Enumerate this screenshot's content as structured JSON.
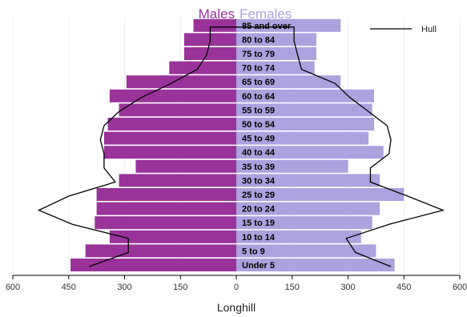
{
  "chart_data": {
    "type": "bar",
    "subtype": "population-pyramid",
    "title_left": "Males",
    "title_right": "Females",
    "xlabel": "Longhill",
    "xlim": [
      -600,
      600
    ],
    "x_ticks": [
      -600,
      -450,
      -300,
      -150,
      0,
      150,
      300,
      450,
      600
    ],
    "x_tick_labels": [
      "600",
      "450",
      "300",
      "150",
      "0",
      "150",
      "300",
      "450",
      "600"
    ],
    "grid": true,
    "legend_position": "top-right",
    "categories": [
      "Under 5",
      "5 to 9",
      "10 to 14",
      "15 to 19",
      "20 to 24",
      "25 to 29",
      "30 to 34",
      "35 to 39",
      "40 to 44",
      "45 to 49",
      "50 to 54",
      "55 to 59",
      "60 to 64",
      "65 to 69",
      "70 to 74",
      "75 to 79",
      "80 to 84",
      "85 and over"
    ],
    "series": [
      {
        "name": "Males",
        "color": "#993399",
        "values": [
          445,
          405,
          340,
          380,
          375,
          375,
          315,
          270,
          355,
          355,
          345,
          315,
          340,
          295,
          180,
          140,
          140,
          115
        ]
      },
      {
        "name": "Females",
        "color": "#aaa3de",
        "values": [
          425,
          375,
          335,
          365,
          385,
          450,
          385,
          300,
          395,
          355,
          370,
          365,
          370,
          280,
          210,
          215,
          215,
          280
        ]
      }
    ],
    "overlay": {
      "name": "Hull",
      "color": "#000000",
      "males": [
        395,
        290,
        290,
        440,
        530,
        450,
        325,
        355,
        355,
        365,
        355,
        315,
        255,
        175,
        105,
        80,
        70,
        70
      ],
      "females": [
        415,
        320,
        295,
        410,
        555,
        460,
        360,
        360,
        410,
        415,
        405,
        355,
        305,
        265,
        175,
        165,
        155,
        155
      ]
    }
  }
}
